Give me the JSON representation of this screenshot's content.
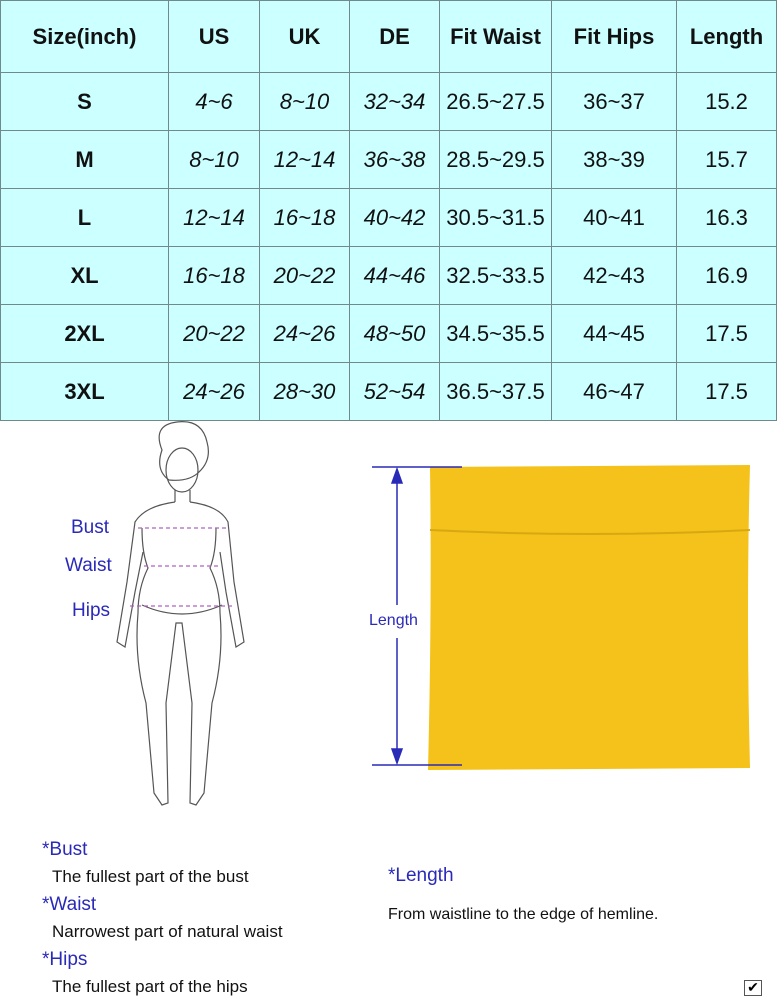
{
  "table": {
    "headers": [
      "Size(inch)",
      "US",
      "UK",
      "DE",
      "Fit Waist",
      "Fit Hips",
      "Length"
    ],
    "rows": [
      [
        "S",
        "4~6",
        "8~10",
        "32~34",
        "26.5~27.5",
        "36~37",
        "15.2"
      ],
      [
        "M",
        "8~10",
        "12~14",
        "36~38",
        "28.5~29.5",
        "38~39",
        "15.7"
      ],
      [
        "L",
        "12~14",
        "16~18",
        "40~42",
        "30.5~31.5",
        "40~41",
        "16.3"
      ],
      [
        "XL",
        "16~18",
        "20~22",
        "44~46",
        "32.5~33.5",
        "42~43",
        "16.9"
      ],
      [
        "2XL",
        "20~22",
        "24~26",
        "48~50",
        "34.5~35.5",
        "44~45",
        "17.5"
      ],
      [
        "3XL",
        "24~26",
        "28~30",
        "52~54",
        "36.5~37.5",
        "46~47",
        "17.5"
      ]
    ]
  },
  "figure_labels": {
    "bust": "Bust",
    "waist": "Waist",
    "hips": "Hips",
    "length": "Length"
  },
  "definitions": [
    {
      "term": "*Bust",
      "text": "The fullest part of the bust"
    },
    {
      "term": "*Waist",
      "text": "Narrowest part of natural waist"
    },
    {
      "term": "*Hips",
      "text": "The fullest part of the hips"
    },
    {
      "term": "*Length",
      "text": "From waistline to the edge of hemline."
    }
  ],
  "colors": {
    "table_bg": "#ccffff",
    "label_blue": "#2a2ab8",
    "skirt": "#f4c21b"
  }
}
